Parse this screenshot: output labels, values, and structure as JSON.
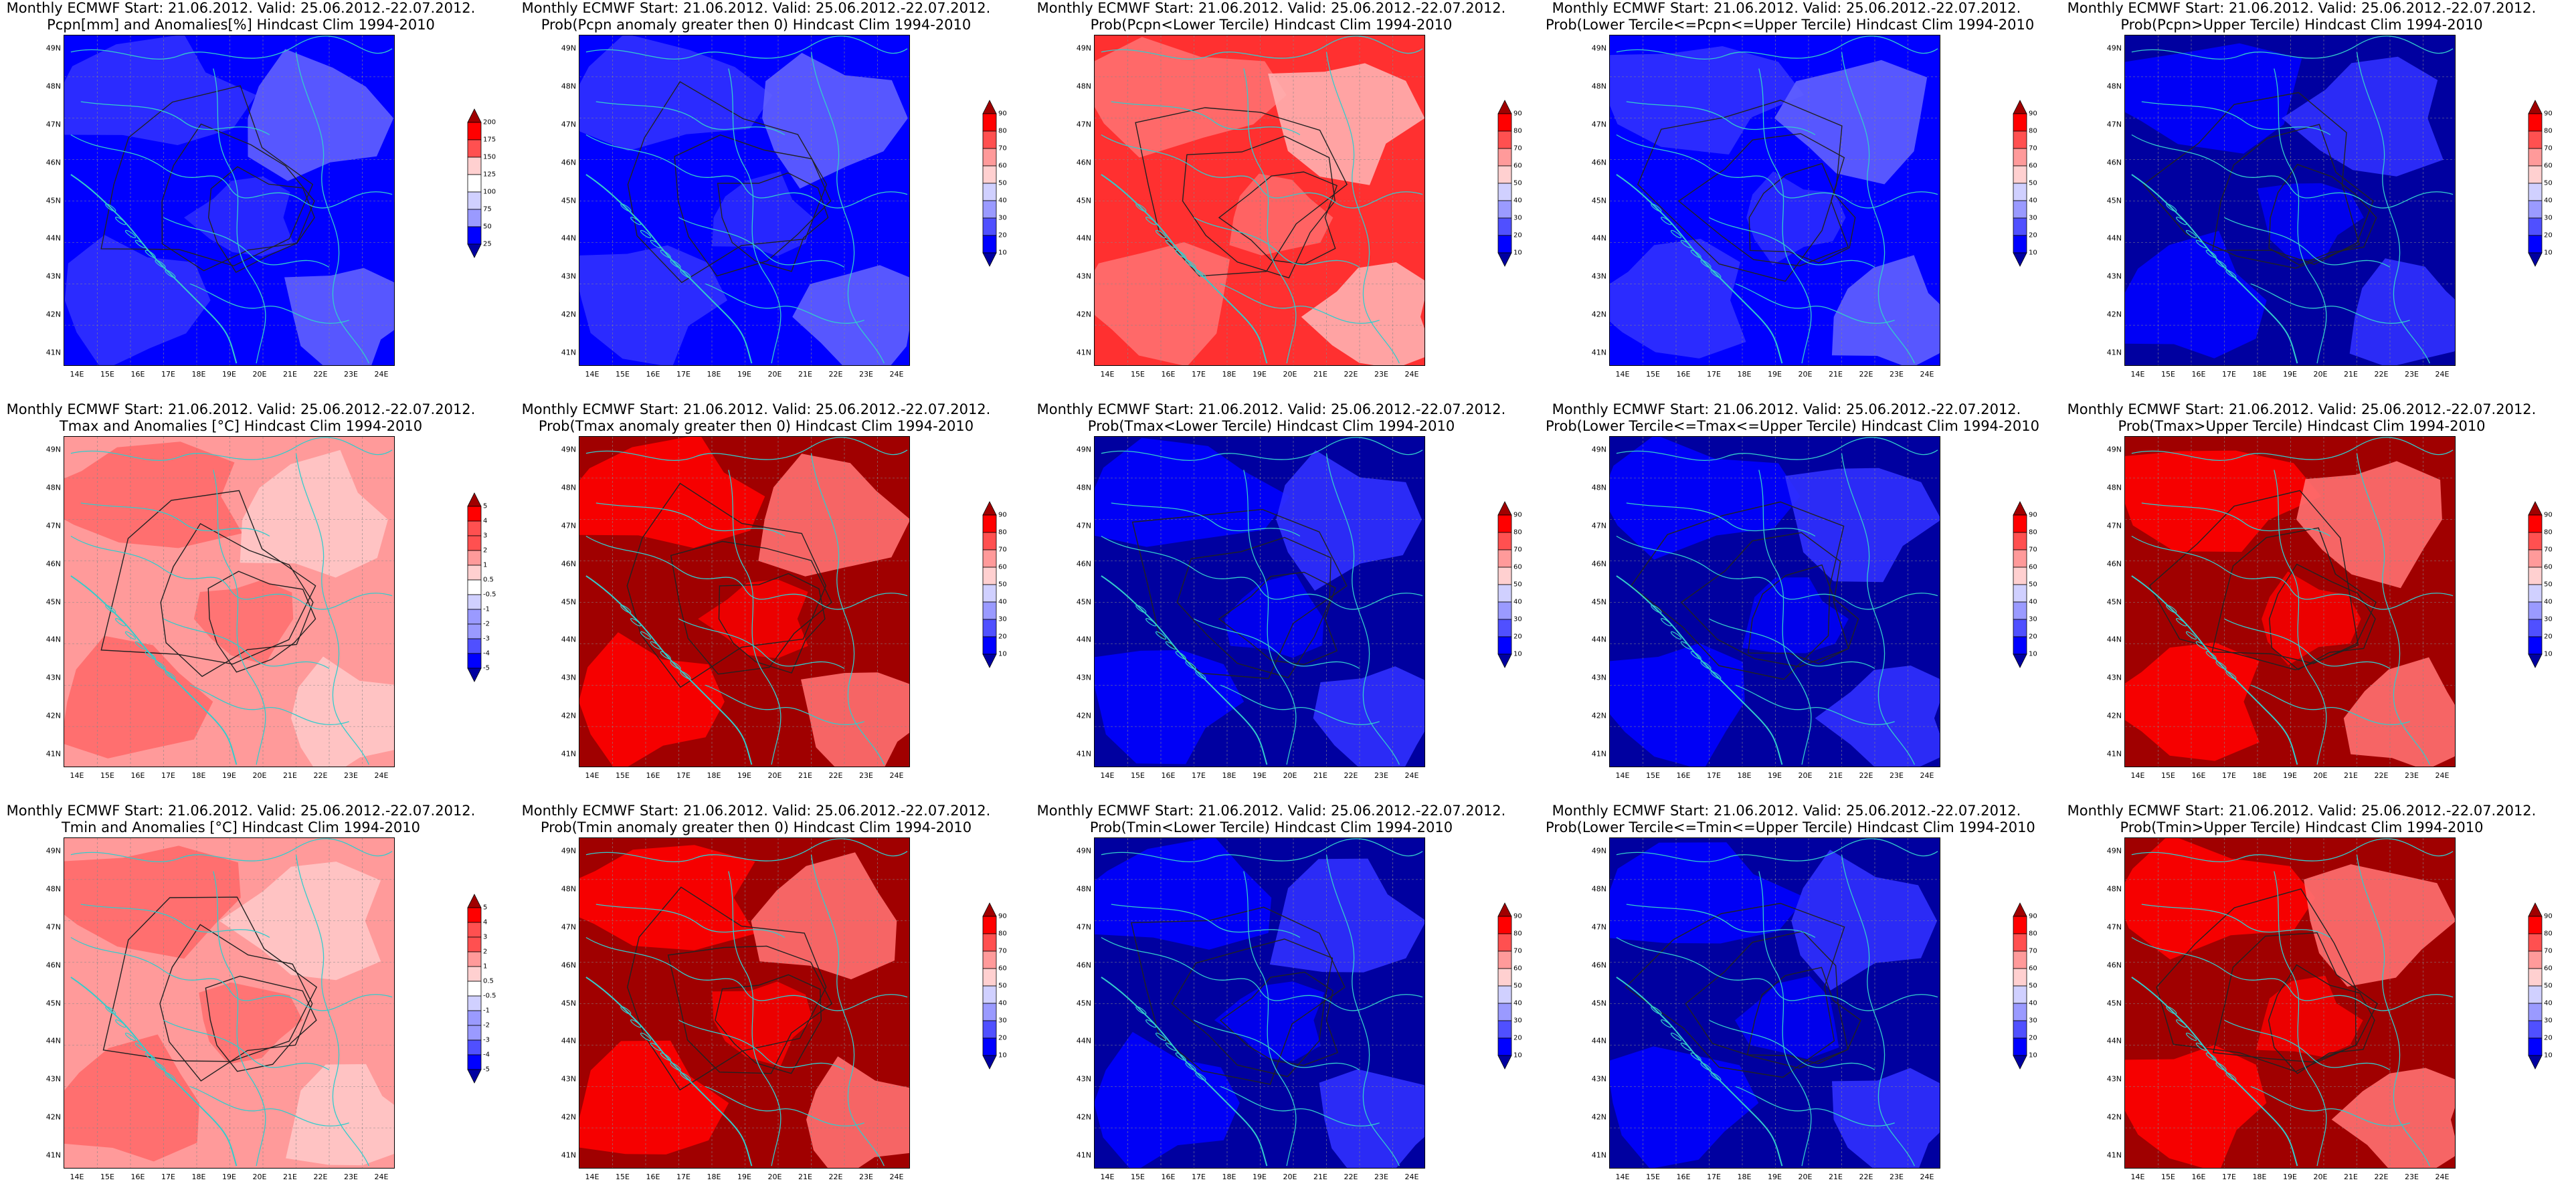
{
  "lat_ticks": [
    "49N",
    "48N",
    "47N",
    "46N",
    "45N",
    "44N",
    "43N",
    "42N",
    "41N"
  ],
  "lon_ticks": [
    "14E",
    "15E",
    "16E",
    "17E",
    "18E",
    "19E",
    "20E",
    "21E",
    "22E",
    "23E",
    "24E"
  ],
  "panels": [
    {
      "line1": "Monthly ECMWF Start: 21.06.2012. Valid: 25.06.2012.-22.07.2012.",
      "line2": "Pcpn[mm] and Anomalies[%] Hindcast Clim 1994-2010",
      "variable": "precipitation-anomaly",
      "dominant": "blue",
      "colorbar": [
        "200",
        "175",
        "150",
        "125",
        "100",
        "75",
        "50",
        "25"
      ]
    },
    {
      "line1": "Monthly ECMWF Start: 21.06.2012. Valid: 25.06.2012.-22.07.2012.",
      "line2": "Prob(Pcpn anomaly greater then 0) Hindcast Clim 1994-2010",
      "variable": "precipitation-prob-positive",
      "dominant": "blue",
      "colorbar": [
        "90",
        "80",
        "70",
        "60",
        "50",
        "40",
        "30",
        "20",
        "10"
      ]
    },
    {
      "line1": "Monthly ECMWF Start: 21.06.2012. Valid: 25.06.2012.-22.07.2012.",
      "line2": "Prob(Pcpn<Lower Tercile) Hindcast Clim 1994-2010",
      "variable": "precipitation-prob-lower",
      "dominant": "red",
      "colorbar": [
        "90",
        "80",
        "70",
        "60",
        "50",
        "40",
        "30",
        "20",
        "10"
      ]
    },
    {
      "line1": "Monthly ECMWF Start: 21.06.2012. Valid: 25.06.2012.-22.07.2012.",
      "line2": "Prob(Lower Tercile<=Pcpn<=Upper Tercile) Hindcast Clim 1994-2010",
      "variable": "precipitation-prob-middle",
      "dominant": "blue",
      "colorbar": [
        "90",
        "80",
        "70",
        "60",
        "50",
        "40",
        "30",
        "20",
        "10"
      ]
    },
    {
      "line1": "Monthly ECMWF Start: 21.06.2012. Valid: 25.06.2012.-22.07.2012.",
      "line2": "Prob(Pcpn>Upper Tercile) Hindcast Clim 1994-2010",
      "variable": "precipitation-prob-upper",
      "dominant": "darkblue",
      "colorbar": [
        "90",
        "80",
        "70",
        "60",
        "50",
        "40",
        "30",
        "20",
        "10"
      ]
    },
    {
      "line1": "Monthly ECMWF Start: 21.06.2012. Valid: 25.06.2012.-22.07.2012.",
      "line2": "Tmax and Anomalies [°C] Hindcast Clim 1994-2010",
      "variable": "tmax-anomaly",
      "dominant": "lightred",
      "colorbar": [
        "5",
        "4",
        "3",
        "2",
        "1",
        "0.5",
        "-0.5",
        "-1",
        "-2",
        "-3",
        "-4",
        "-5"
      ]
    },
    {
      "line1": "Monthly ECMWF Start: 21.06.2012. Valid: 25.06.2012.-22.07.2012.",
      "line2": "Prob(Tmax anomaly greater then 0) Hindcast Clim 1994-2010",
      "variable": "tmax-prob-positive",
      "dominant": "darkred",
      "colorbar": [
        "90",
        "80",
        "70",
        "60",
        "50",
        "40",
        "30",
        "20",
        "10"
      ]
    },
    {
      "line1": "Monthly ECMWF Start: 21.06.2012. Valid: 25.06.2012.-22.07.2012.",
      "line2": "Prob(Tmax<Lower Tercile) Hindcast Clim 1994-2010",
      "variable": "tmax-prob-lower",
      "dominant": "darkblue",
      "colorbar": [
        "90",
        "80",
        "70",
        "60",
        "50",
        "40",
        "30",
        "20",
        "10"
      ]
    },
    {
      "line1": "Monthly ECMWF Start: 21.06.2012. Valid: 25.06.2012.-22.07.2012.",
      "line2": "Prob(Lower Tercile<=Tmax<=Upper Tercile) Hindcast Clim 1994-2010",
      "variable": "tmax-prob-middle",
      "dominant": "darkblue",
      "colorbar": [
        "90",
        "80",
        "70",
        "60",
        "50",
        "40",
        "30",
        "20",
        "10"
      ]
    },
    {
      "line1": "Monthly ECMWF Start: 21.06.2012. Valid: 25.06.2012.-22.07.2012.",
      "line2": "Prob(Tmax>Upper Tercile) Hindcast Clim 1994-2010",
      "variable": "tmax-prob-upper",
      "dominant": "darkred",
      "colorbar": [
        "90",
        "80",
        "70",
        "60",
        "50",
        "40",
        "30",
        "20",
        "10"
      ]
    },
    {
      "line1": "Monthly ECMWF Start: 21.06.2012. Valid: 25.06.2012.-22.07.2012.",
      "line2": "Tmin and Anomalies [°C] Hindcast Clim 1994-2010",
      "variable": "tmin-anomaly",
      "dominant": "lightred",
      "colorbar": [
        "5",
        "4",
        "3",
        "2",
        "1",
        "0.5",
        "-0.5",
        "-1",
        "-2",
        "-3",
        "-4",
        "-5"
      ]
    },
    {
      "line1": "Monthly ECMWF Start: 21.06.2012. Valid: 25.06.2012.-22.07.2012.",
      "line2": "Prob(Tmin anomaly greater then 0) Hindcast Clim 1994-2010",
      "variable": "tmin-prob-positive",
      "dominant": "darkred",
      "colorbar": [
        "90",
        "80",
        "70",
        "60",
        "50",
        "40",
        "30",
        "20",
        "10"
      ]
    },
    {
      "line1": "Monthly ECMWF Start: 21.06.2012. Valid: 25.06.2012.-22.07.2012.",
      "line2": "Prob(Tmin<Lower Tercile) Hindcast Clim 1994-2010",
      "variable": "tmin-prob-lower",
      "dominant": "darkblue",
      "colorbar": [
        "90",
        "80",
        "70",
        "60",
        "50",
        "40",
        "30",
        "20",
        "10"
      ]
    },
    {
      "line1": "Monthly ECMWF Start: 21.06.2012. Valid: 25.06.2012.-22.07.2012.",
      "line2": "Prob(Lower Tercile<=Tmin<=Upper Tercile) Hindcast Clim 1994-2010",
      "variable": "tmin-prob-middle",
      "dominant": "darkblue",
      "colorbar": [
        "90",
        "80",
        "70",
        "60",
        "50",
        "40",
        "30",
        "20",
        "10"
      ]
    },
    {
      "line1": "Monthly ECMWF Start: 21.06.2012. Valid: 25.06.2012.-22.07.2012.",
      "line2": "Prob(Tmin>Upper Tercile) Hindcast Clim 1994-2010",
      "variable": "tmin-prob-upper",
      "dominant": "darkred",
      "colorbar": [
        "90",
        "80",
        "70",
        "60",
        "50",
        "40",
        "30",
        "20",
        "10"
      ]
    }
  ],
  "palette": {
    "prob_colors": [
      "#0000a0",
      "#0000ff",
      "#5050ff",
      "#9a9aff",
      "#d0d0ff",
      "#ffffff",
      "#ffd0d0",
      "#ff9a9a",
      "#ff5050",
      "#ff0000",
      "#a00000"
    ],
    "coast": "#33cccc",
    "contour": "#222222"
  }
}
